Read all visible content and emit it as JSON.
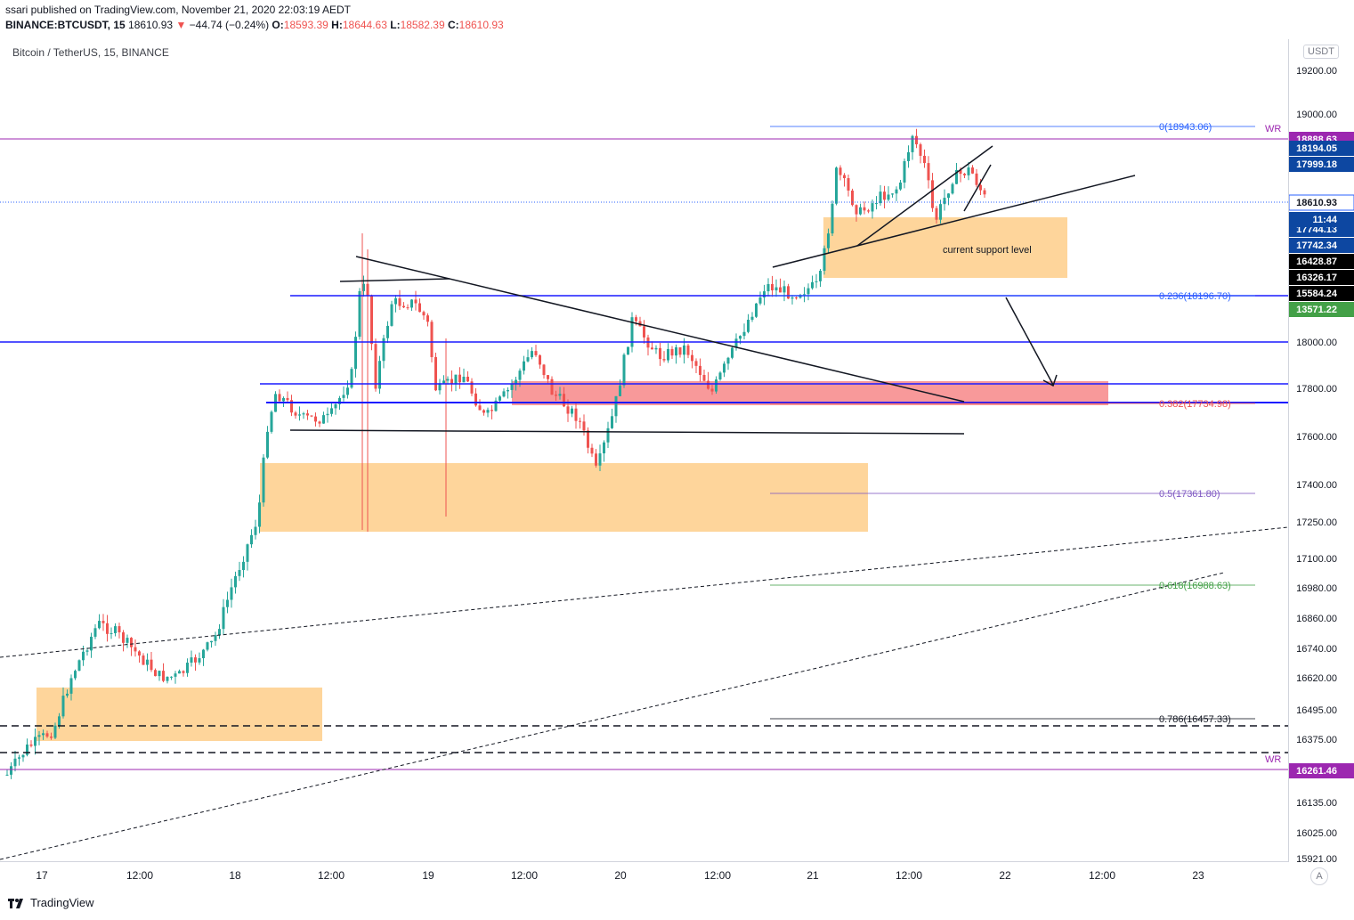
{
  "header": {
    "published": "ssari published on TradingView.com, November 21, 2020 22:03:19 AEDT",
    "symbol": "BINANCE:BTCUSDT, 15",
    "last": "18610.93",
    "change": "−44.74 (−0.24%)",
    "change_arrow": "▼",
    "o_label": "O:",
    "o": "18593.39",
    "h_label": "H:",
    "h": "18644.63",
    "l_label": "L:",
    "l": "18582.39",
    "c_label": "C:",
    "c": "18610.93"
  },
  "chart_title": "Bitcoin / TetherUS, 15, BINANCE",
  "currency_badge": "USDT",
  "auto_scale_label": "A",
  "footer": {
    "brand": "TradingView"
  },
  "annotations": {
    "support_text": "current support level",
    "wr_top": "WR",
    "wr_bottom": "WR"
  },
  "chart_data": {
    "type": "candlestick",
    "title": "Bitcoin / TetherUS, 15, BINANCE",
    "interval": "15",
    "x_tick_labels": [
      "17",
      "12:00",
      "18",
      "12:00",
      "19",
      "12:00",
      "20",
      "12:00",
      "21",
      "12:00",
      "22",
      "12:00",
      "23"
    ],
    "y_tick_labels": [
      "19200.00",
      "19000.00",
      "18000.00",
      "17800.00",
      "17600.00",
      "17400.00",
      "17250.00",
      "17100.00",
      "16980.00",
      "16860.00",
      "16740.00",
      "16620.00",
      "16495.00",
      "16375.00",
      "16135.00",
      "16025.00",
      "15921.00"
    ],
    "y_price_tags": [
      {
        "label": "18888.63",
        "color": "#9c27b0"
      },
      {
        "label": "18194.05",
        "color": "#0d47a1"
      },
      {
        "label": "17999.18",
        "color": "#0d47a1"
      },
      {
        "label": "18610.93",
        "color": "#ffffff"
      },
      {
        "label": "17744.13",
        "color": "#0d47a1"
      },
      {
        "label": "11:44",
        "color": "#0d47a1"
      },
      {
        "label": "17742.34",
        "color": "#0d47a1"
      },
      {
        "label": "16428.87",
        "color": "#000000"
      },
      {
        "label": "16326.17",
        "color": "#000000"
      },
      {
        "label": "15584.24",
        "color": "#000000"
      },
      {
        "label": "13571.22",
        "color": "#43a047"
      },
      {
        "label": "16261.46",
        "color": "#9c27b0"
      }
    ],
    "fib_levels": [
      {
        "label": "0(18943.06)",
        "ratio": 0,
        "value": 18943.06
      },
      {
        "label": "0.236(18196.70)",
        "ratio": 0.236,
        "value": 18196.7
      },
      {
        "label": "0.382(17734.98)",
        "ratio": 0.382,
        "value": 17734.98
      },
      {
        "label": "0.5(17361.80)",
        "ratio": 0.5,
        "value": 17361.8
      },
      {
        "label": "0.618(16988.63)",
        "ratio": 0.618,
        "value": 16988.63
      },
      {
        "label": "0.786(16457.33)",
        "ratio": 0.786,
        "value": 16457.33
      }
    ],
    "last_price": 18610.93
  }
}
